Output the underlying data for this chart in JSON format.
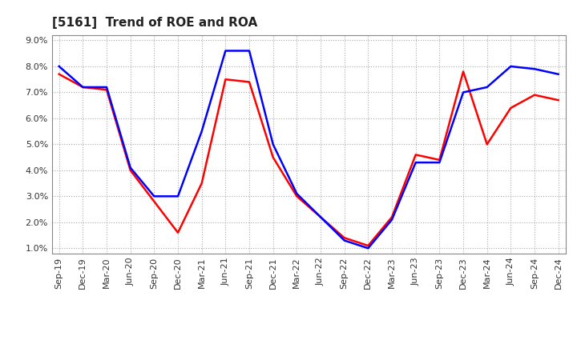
{
  "title": "[5161]  Trend of ROE and ROA",
  "x_labels": [
    "Sep-19",
    "Dec-19",
    "Mar-20",
    "Jun-20",
    "Sep-20",
    "Dec-20",
    "Mar-21",
    "Jun-21",
    "Sep-21",
    "Dec-21",
    "Mar-22",
    "Jun-22",
    "Sep-22",
    "Dec-22",
    "Mar-23",
    "Jun-23",
    "Sep-23",
    "Dec-23",
    "Mar-24",
    "Jun-24",
    "Sep-24",
    "Dec-24"
  ],
  "ROE": [
    7.7,
    7.2,
    7.1,
    4.0,
    2.8,
    1.6,
    3.5,
    7.5,
    7.4,
    4.5,
    3.0,
    2.2,
    1.4,
    1.1,
    2.2,
    4.6,
    4.4,
    7.8,
    5.0,
    6.4,
    6.9,
    6.7
  ],
  "ROA": [
    8.0,
    7.2,
    7.2,
    4.1,
    3.0,
    3.0,
    5.5,
    8.6,
    8.6,
    5.0,
    3.1,
    2.2,
    1.3,
    1.0,
    2.1,
    4.3,
    4.3,
    7.0,
    7.2,
    8.0,
    7.9,
    7.7
  ],
  "ROE_color": "#ff0000",
  "ROA_color": "#0000ff",
  "ylim": [
    0.8,
    9.2
  ],
  "yticks": [
    1.0,
    2.0,
    3.0,
    4.0,
    5.0,
    6.0,
    7.0,
    8.0,
    9.0
  ],
  "background_color": "#ffffff",
  "grid_color": "#aaaaaa",
  "title_fontsize": 11,
  "axis_fontsize": 8,
  "legend_fontsize": 9,
  "line_width": 1.8
}
